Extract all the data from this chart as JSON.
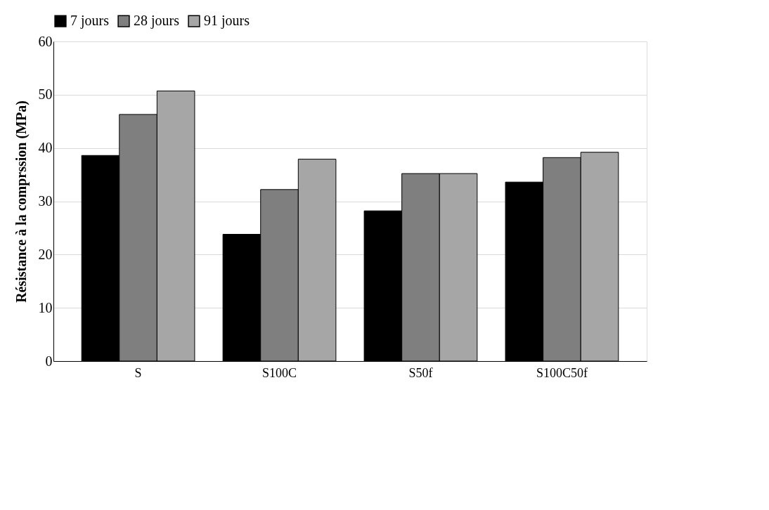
{
  "chart_data": {
    "type": "bar",
    "ylabel": "Résistance à la comprssion (MPa)",
    "categories": [
      "S",
      "S100C",
      "S50f",
      "S100C50f"
    ],
    "series": [
      {
        "name": "7 jours",
        "color": "#000000",
        "values": [
          38.6,
          23.8,
          28.2,
          33.6
        ]
      },
      {
        "name": "28 jours",
        "color": "#7f7f7f",
        "values": [
          46.3,
          32.2,
          35.2,
          38.2
        ]
      },
      {
        "name": "91 jours",
        "color": "#a6a6a6",
        "values": [
          50.7,
          37.9,
          35.2,
          39.2
        ]
      }
    ],
    "ylim": [
      0,
      60
    ],
    "yticks": [
      0,
      10,
      20,
      30,
      40,
      50,
      60
    ],
    "grid": "y",
    "legend": "top"
  }
}
